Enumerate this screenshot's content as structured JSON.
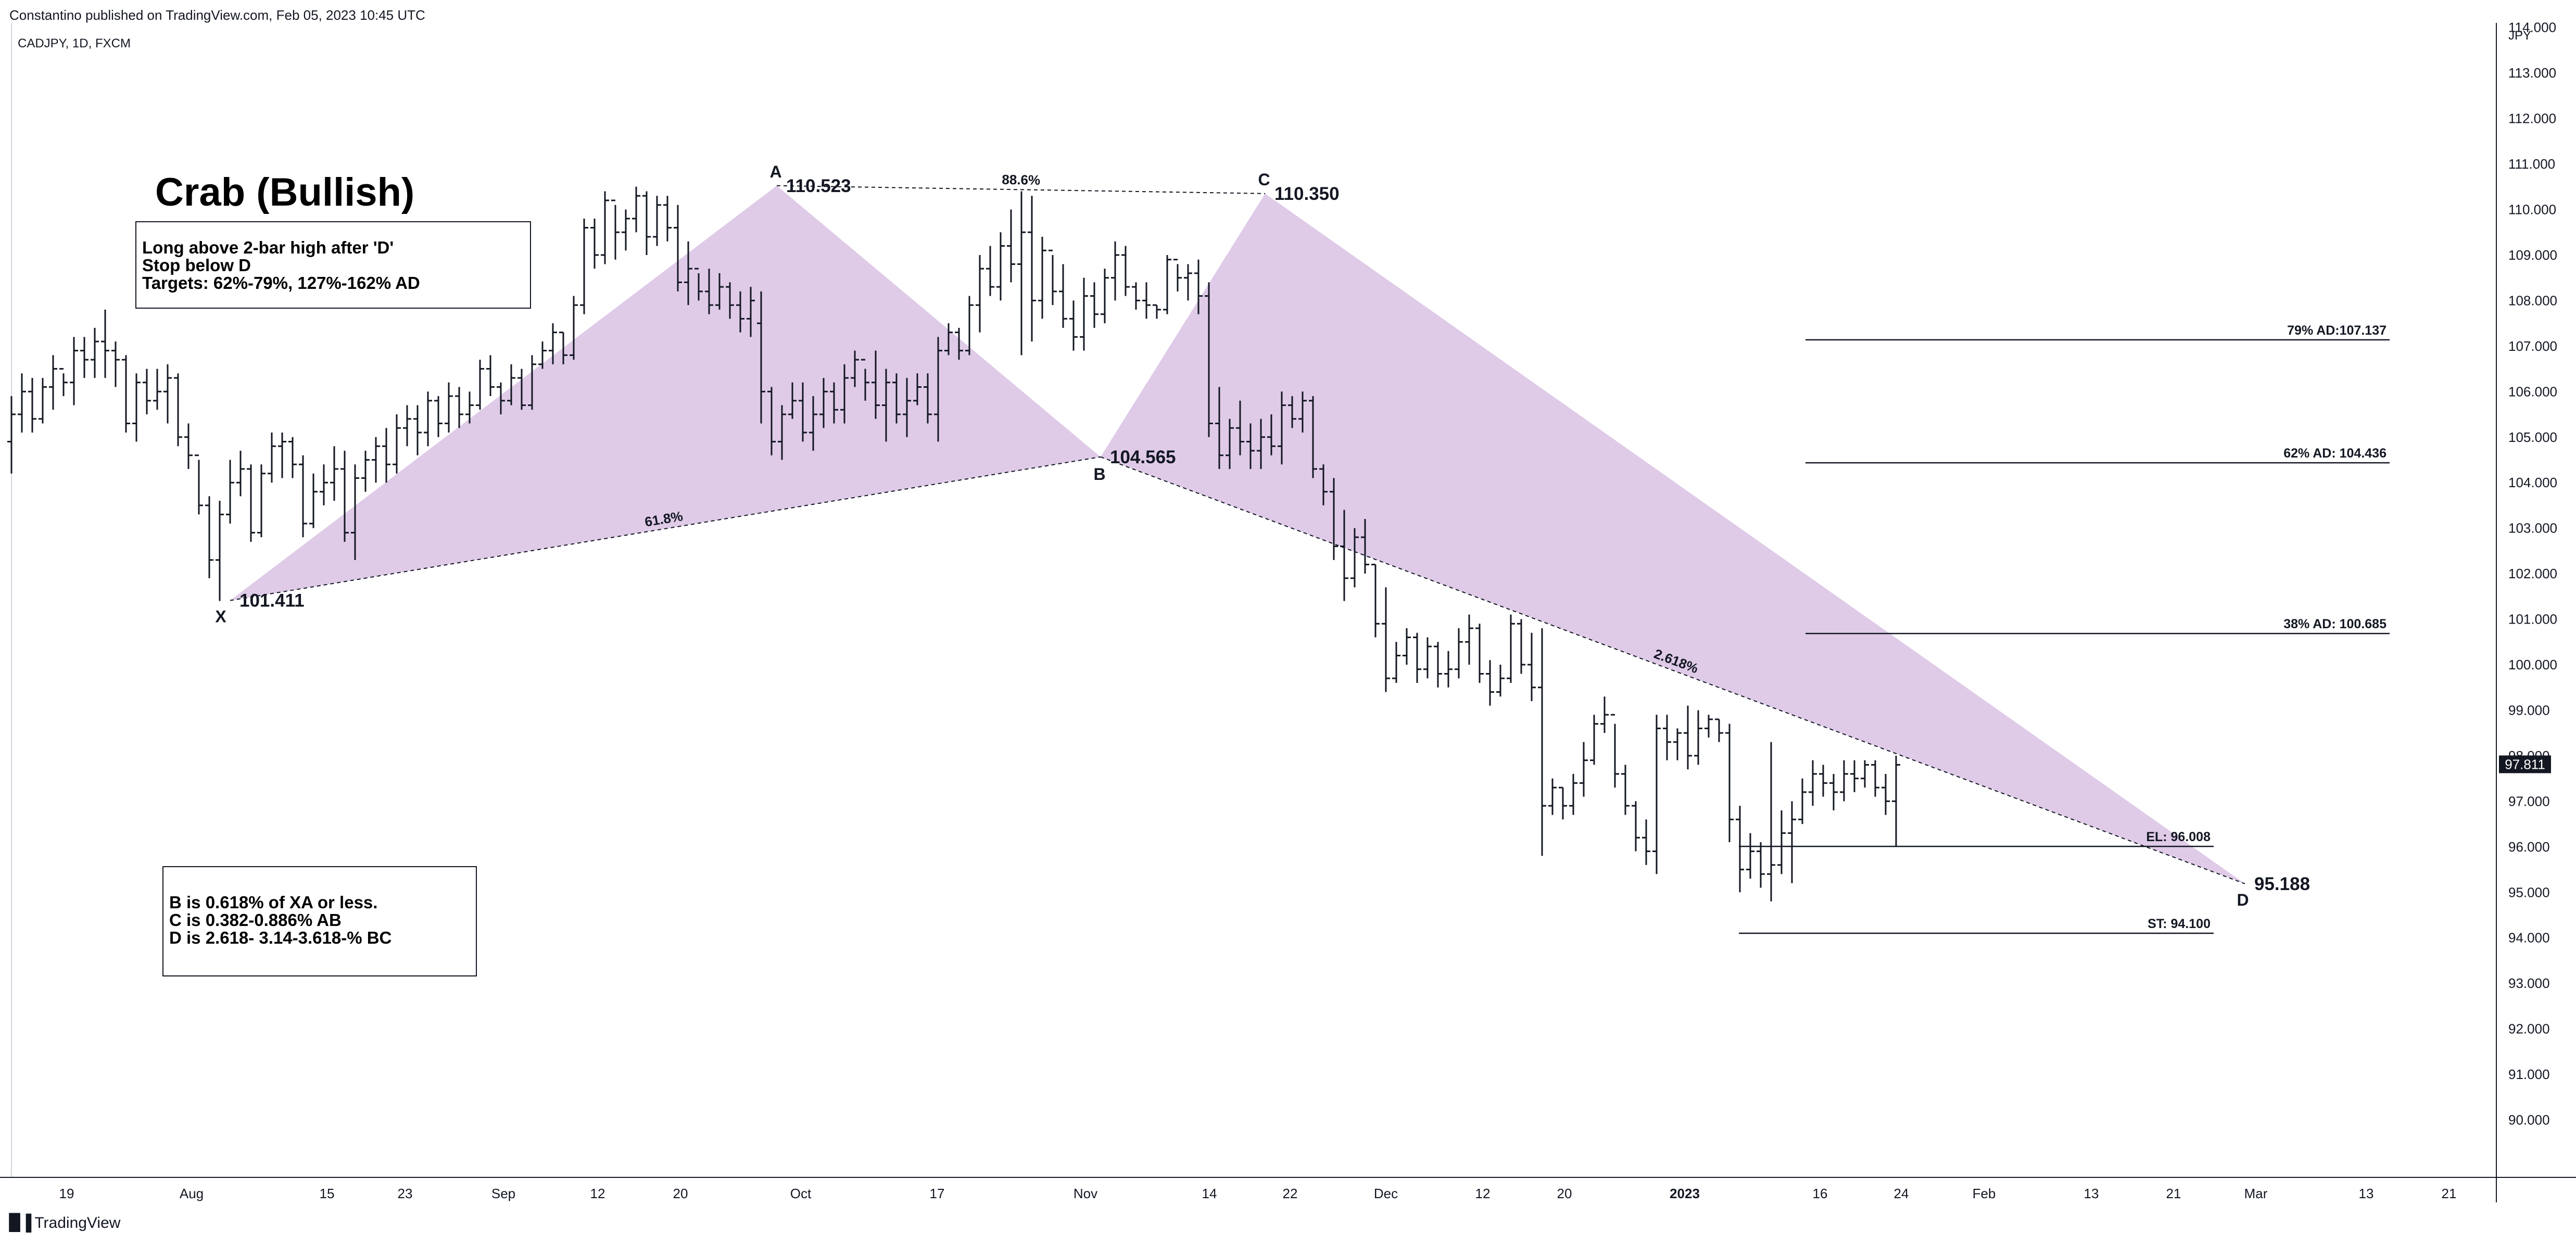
{
  "header": {
    "published": "Constantino published on TradingView.com, Feb 05, 2023 10:45 UTC",
    "symbol": "CADJPY, 1D, FXCM"
  },
  "pattern_title": "Crab (Bullish)",
  "note_targets": [
    "Long above 2-bar high after 'D'",
    "Stop below D",
    "Targets: 62%-79%, 127%-162% AD"
  ],
  "note_rules": [
    "B is  0.618%  of XA or less.",
    "C is 0.382-0.886% AB",
    "D is 2.618- 3.14-3.618-% BC"
  ],
  "watermark": "TradingView",
  "colors": {
    "pattern_fill": "#d9c2e4",
    "line": "#131722",
    "price_badge": "#131722"
  },
  "chart_data": {
    "type": "bar",
    "subtype": "ohlc",
    "currency_label": "JPY",
    "ylim": [
      89.5,
      114.5
    ],
    "y_ticks": [
      "114.000",
      "113.000",
      "112.000",
      "111.000",
      "110.000",
      "109.000",
      "108.000",
      "107.000",
      "106.000",
      "105.000",
      "104.000",
      "103.000",
      "102.000",
      "101.000",
      "100.000",
      "99.000",
      "98.000",
      "97.000",
      "96.000",
      "95.000",
      "94.000",
      "93.000",
      "92.000",
      "91.000",
      "90.000"
    ],
    "x_ticks": [
      "19",
      "Aug",
      "15",
      "23",
      "Sep",
      "12",
      "20",
      "Oct",
      "17",
      "Nov",
      "14",
      "22",
      "Dec",
      "12",
      "20",
      "2023",
      "16",
      "24",
      "Feb",
      "13",
      "21",
      "Mar",
      "13",
      "21"
    ],
    "current_price": "97.811",
    "pivots": [
      {
        "label": "X",
        "price": "101.411"
      },
      {
        "label": "A",
        "price": "110.523"
      },
      {
        "label": "B",
        "price": "104.565"
      },
      {
        "label": "C",
        "price": "110.350"
      },
      {
        "label": "D",
        "price": "95.188"
      }
    ],
    "ratios": [
      {
        "between": "X-B",
        "text": "61.8%"
      },
      {
        "between": "A-C",
        "text": "88.6%"
      },
      {
        "between": "B-D",
        "text": "2.618%"
      }
    ],
    "levels": [
      {
        "label": "79% AD:107.137",
        "price": 107.137
      },
      {
        "label": "62% AD: 104.436",
        "price": 104.436
      },
      {
        "label": "38% AD: 100.685",
        "price": 100.685
      },
      {
        "label": "EL: 96.008",
        "price": 96.008
      },
      {
        "label": "ST: 94.100",
        "price": 94.1
      }
    ],
    "bars": [
      [
        104.9,
        105.9,
        104.2,
        105.5
      ],
      [
        105.5,
        106.4,
        105.1,
        106.0
      ],
      [
        106.0,
        106.3,
        105.1,
        105.4
      ],
      [
        105.4,
        106.3,
        105.3,
        106.1
      ],
      [
        106.1,
        106.8,
        105.6,
        106.5
      ],
      [
        106.5,
        106.4,
        105.9,
        106.2
      ],
      [
        106.2,
        107.2,
        105.7,
        106.9
      ],
      [
        106.9,
        107.2,
        106.3,
        106.7
      ],
      [
        106.7,
        107.4,
        106.3,
        107.1
      ],
      [
        107.1,
        107.8,
        106.3,
        106.9
      ],
      [
        106.9,
        107.1,
        106.1,
        106.7
      ],
      [
        106.7,
        106.8,
        105.1,
        105.3
      ],
      [
        105.3,
        106.4,
        104.9,
        106.2
      ],
      [
        106.2,
        106.5,
        105.5,
        105.8
      ],
      [
        105.8,
        106.5,
        105.6,
        106.0
      ],
      [
        106.0,
        106.6,
        105.3,
        106.3
      ],
      [
        106.3,
        106.4,
        104.8,
        105.0
      ],
      [
        105.0,
        105.3,
        104.3,
        104.6
      ],
      [
        104.6,
        104.5,
        103.3,
        103.5
      ],
      [
        103.5,
        103.7,
        101.9,
        102.3
      ],
      [
        102.3,
        103.6,
        101.4,
        103.3
      ],
      [
        103.3,
        104.5,
        103.1,
        104.0
      ],
      [
        104.0,
        104.7,
        103.7,
        104.3
      ],
      [
        104.3,
        104.4,
        102.7,
        102.9
      ],
      [
        102.9,
        104.4,
        102.8,
        104.2
      ],
      [
        104.2,
        105.1,
        104.0,
        104.8
      ],
      [
        104.8,
        105.1,
        104.1,
        104.9
      ],
      [
        104.9,
        105.0,
        104.1,
        104.4
      ],
      [
        104.4,
        104.6,
        102.8,
        103.1
      ],
      [
        103.1,
        104.2,
        103.0,
        103.8
      ],
      [
        103.8,
        104.4,
        103.5,
        104.0
      ],
      [
        104.0,
        104.8,
        103.6,
        104.3
      ],
      [
        104.3,
        104.7,
        102.7,
        102.9
      ],
      [
        102.9,
        104.4,
        102.3,
        104.1
      ],
      [
        104.1,
        104.7,
        103.8,
        104.5
      ],
      [
        104.5,
        105.0,
        104.0,
        104.8
      ],
      [
        104.8,
        105.2,
        104.0,
        104.4
      ],
      [
        104.4,
        105.5,
        104.2,
        105.2
      ],
      [
        105.2,
        105.7,
        104.8,
        105.4
      ],
      [
        105.4,
        105.7,
        104.6,
        105.1
      ],
      [
        105.1,
        106.0,
        104.8,
        105.8
      ],
      [
        105.8,
        105.9,
        105.0,
        105.3
      ],
      [
        105.3,
        106.2,
        105.1,
        105.9
      ],
      [
        105.9,
        106.1,
        105.2,
        105.5
      ],
      [
        105.5,
        106.0,
        105.3,
        105.7
      ],
      [
        105.7,
        106.7,
        105.6,
        106.5
      ],
      [
        106.5,
        106.8,
        105.9,
        106.1
      ],
      [
        106.1,
        106.2,
        105.5,
        105.8
      ],
      [
        105.8,
        106.6,
        105.7,
        106.3
      ],
      [
        106.3,
        106.5,
        105.6,
        105.7
      ],
      [
        105.7,
        106.8,
        105.6,
        106.6
      ],
      [
        106.6,
        107.1,
        106.5,
        106.9
      ],
      [
        106.9,
        107.5,
        106.6,
        107.3
      ],
      [
        107.3,
        107.3,
        106.6,
        106.8
      ],
      [
        106.8,
        108.1,
        106.7,
        107.9
      ],
      [
        107.9,
        109.8,
        107.7,
        109.6
      ],
      [
        109.6,
        109.8,
        108.7,
        109.0
      ],
      [
        109.0,
        110.4,
        108.8,
        110.2
      ],
      [
        110.2,
        110.1,
        108.9,
        109.5
      ],
      [
        109.5,
        110.0,
        109.1,
        109.8
      ],
      [
        109.8,
        110.5,
        109.5,
        110.3
      ],
      [
        110.3,
        110.4,
        109.0,
        109.4
      ],
      [
        109.4,
        110.3,
        109.2,
        110.1
      ],
      [
        110.1,
        110.3,
        109.3,
        109.6
      ],
      [
        109.6,
        110.1,
        108.2,
        108.4
      ],
      [
        108.4,
        109.3,
        107.9,
        108.7
      ],
      [
        108.7,
        108.6,
        108.0,
        108.2
      ],
      [
        108.2,
        108.7,
        107.7,
        107.9
      ],
      [
        107.9,
        108.6,
        107.8,
        108.3
      ],
      [
        108.3,
        108.4,
        107.6,
        107.9
      ],
      [
        107.9,
        108.2,
        107.3,
        107.6
      ],
      [
        107.6,
        108.3,
        107.2,
        108.0
      ],
      [
        107.5,
        108.2,
        105.3,
        106.0
      ],
      [
        106.0,
        106.1,
        104.6,
        104.9
      ],
      [
        104.9,
        105.7,
        104.5,
        105.5
      ],
      [
        105.5,
        106.2,
        105.4,
        105.8
      ],
      [
        105.8,
        106.2,
        104.9,
        105.1
      ],
      [
        105.1,
        105.9,
        104.7,
        105.5
      ],
      [
        105.5,
        106.3,
        105.2,
        106.0
      ],
      [
        106.0,
        106.2,
        105.3,
        105.6
      ],
      [
        105.6,
        106.6,
        105.3,
        106.3
      ],
      [
        106.3,
        106.9,
        106.1,
        106.7
      ],
      [
        106.7,
        106.5,
        105.8,
        106.2
      ],
      [
        106.2,
        106.9,
        105.4,
        105.7
      ],
      [
        105.7,
        106.5,
        104.9,
        106.2
      ],
      [
        106.2,
        106.4,
        105.3,
        105.5
      ],
      [
        105.5,
        106.3,
        105.0,
        105.8
      ],
      [
        105.8,
        106.4,
        105.7,
        106.1
      ],
      [
        106.1,
        106.4,
        105.3,
        105.5
      ],
      [
        105.5,
        107.2,
        104.9,
        106.9
      ],
      [
        106.9,
        107.5,
        106.8,
        107.3
      ],
      [
        107.3,
        107.4,
        106.7,
        106.9
      ],
      [
        106.9,
        108.1,
        106.8,
        107.9
      ],
      [
        107.9,
        109.0,
        107.3,
        108.7
      ],
      [
        108.7,
        109.2,
        108.1,
        108.3
      ],
      [
        108.3,
        109.5,
        108.0,
        109.2
      ],
      [
        109.2,
        110.0,
        108.4,
        108.8
      ],
      [
        108.8,
        110.4,
        106.8,
        109.5
      ],
      [
        109.5,
        110.3,
        107.1,
        108.0
      ],
      [
        108.0,
        109.4,
        107.6,
        109.1
      ],
      [
        109.1,
        109.0,
        107.9,
        108.2
      ],
      [
        108.2,
        108.8,
        107.4,
        107.6
      ],
      [
        107.6,
        108.0,
        106.9,
        107.2
      ],
      [
        107.2,
        108.5,
        106.9,
        108.1
      ],
      [
        108.1,
        108.4,
        107.4,
        107.7
      ],
      [
        107.7,
        108.7,
        107.5,
        108.5
      ],
      [
        108.5,
        109.3,
        108.0,
        109.0
      ],
      [
        109.0,
        109.2,
        108.1,
        108.3
      ],
      [
        108.3,
        108.4,
        107.8,
        108.0
      ],
      [
        108.0,
        108.4,
        107.6,
        107.9
      ],
      [
        107.9,
        107.9,
        107.6,
        107.8
      ],
      [
        107.8,
        109.0,
        107.7,
        108.9
      ],
      [
        108.9,
        108.8,
        108.2,
        108.5
      ],
      [
        108.5,
        108.8,
        108.0,
        108.6
      ],
      [
        108.6,
        108.9,
        107.7,
        108.1
      ],
      [
        108.1,
        108.4,
        105.0,
        105.3
      ],
      [
        105.3,
        106.1,
        104.3,
        104.6
      ],
      [
        104.6,
        105.4,
        104.3,
        105.2
      ],
      [
        105.2,
        105.8,
        104.6,
        104.9
      ],
      [
        104.9,
        105.3,
        104.3,
        104.7
      ],
      [
        104.7,
        105.4,
        104.3,
        105.0
      ],
      [
        105.0,
        105.5,
        104.6,
        104.8
      ],
      [
        104.8,
        106.0,
        104.4,
        105.7
      ],
      [
        105.7,
        105.9,
        105.2,
        105.4
      ],
      [
        105.4,
        106.0,
        105.1,
        105.8
      ],
      [
        105.8,
        105.9,
        104.1,
        104.3
      ],
      [
        104.3,
        104.4,
        103.5,
        103.8
      ],
      [
        103.8,
        104.1,
        102.3,
        102.6
      ],
      [
        102.6,
        103.4,
        101.4,
        101.9
      ],
      [
        101.9,
        103.0,
        101.7,
        102.8
      ],
      [
        102.8,
        103.2,
        102.0,
        102.2
      ],
      [
        102.2,
        102.2,
        100.6,
        100.9
      ],
      [
        100.9,
        101.7,
        99.4,
        99.7
      ],
      [
        99.7,
        100.5,
        99.6,
        100.2
      ],
      [
        100.2,
        100.8,
        100.0,
        100.6
      ],
      [
        100.6,
        100.7,
        99.6,
        99.9
      ],
      [
        99.9,
        100.6,
        99.7,
        100.4
      ],
      [
        100.4,
        100.5,
        99.5,
        99.8
      ],
      [
        99.8,
        100.3,
        99.5,
        99.9
      ],
      [
        99.9,
        100.8,
        99.7,
        100.5
      ],
      [
        100.5,
        101.1,
        100.0,
        100.8
      ],
      [
        100.8,
        100.9,
        99.6,
        99.8
      ],
      [
        99.8,
        100.1,
        99.1,
        99.4
      ],
      [
        99.4,
        100.0,
        99.3,
        99.7
      ],
      [
        99.7,
        101.1,
        99.6,
        100.9
      ],
      [
        100.9,
        101.0,
        99.8,
        100.0
      ],
      [
        100.0,
        100.7,
        99.2,
        99.5
      ],
      [
        99.5,
        100.8,
        95.8,
        96.9
      ],
      [
        96.9,
        97.5,
        96.7,
        97.3
      ],
      [
        97.3,
        97.3,
        96.6,
        96.9
      ],
      [
        96.9,
        97.6,
        96.7,
        97.4
      ],
      [
        97.4,
        98.3,
        97.1,
        97.9
      ],
      [
        97.9,
        98.9,
        97.8,
        98.7
      ],
      [
        98.7,
        99.3,
        98.5,
        98.9
      ],
      [
        98.9,
        98.7,
        97.3,
        97.6
      ],
      [
        97.6,
        97.8,
        96.7,
        96.9
      ],
      [
        96.9,
        97.0,
        95.9,
        96.2
      ],
      [
        96.2,
        96.6,
        95.6,
        95.9
      ],
      [
        95.9,
        98.9,
        95.4,
        98.6
      ],
      [
        98.6,
        98.9,
        97.9,
        98.3
      ],
      [
        98.3,
        98.6,
        97.9,
        98.5
      ],
      [
        98.5,
        99.1,
        97.7,
        98.0
      ],
      [
        98.0,
        99.0,
        97.8,
        98.6
      ],
      [
        98.6,
        98.9,
        98.4,
        98.8
      ],
      [
        98.8,
        98.8,
        98.3,
        98.5
      ],
      [
        98.5,
        98.7,
        96.1,
        96.6
      ],
      [
        96.6,
        96.9,
        95.0,
        95.5
      ],
      [
        95.5,
        96.3,
        95.3,
        95.9
      ],
      [
        95.9,
        96.1,
        95.1,
        95.4
      ],
      [
        95.4,
        98.3,
        94.8,
        95.6
      ],
      [
        95.6,
        96.8,
        95.4,
        96.3
      ],
      [
        96.3,
        97.0,
        95.2,
        96.6
      ],
      [
        96.6,
        97.5,
        96.5,
        97.2
      ],
      [
        97.2,
        97.9,
        96.9,
        97.6
      ],
      [
        97.6,
        97.8,
        97.1,
        97.4
      ],
      [
        97.4,
        97.6,
        96.8,
        97.2
      ],
      [
        97.2,
        97.9,
        97.0,
        97.6
      ],
      [
        97.6,
        97.9,
        97.2,
        97.5
      ],
      [
        97.5,
        97.9,
        97.3,
        97.8
      ],
      [
        97.8,
        97.9,
        97.1,
        97.3
      ],
      [
        97.3,
        97.6,
        96.7,
        97.0
      ],
      [
        97.0,
        98.0,
        96.0,
        97.8
      ]
    ]
  }
}
